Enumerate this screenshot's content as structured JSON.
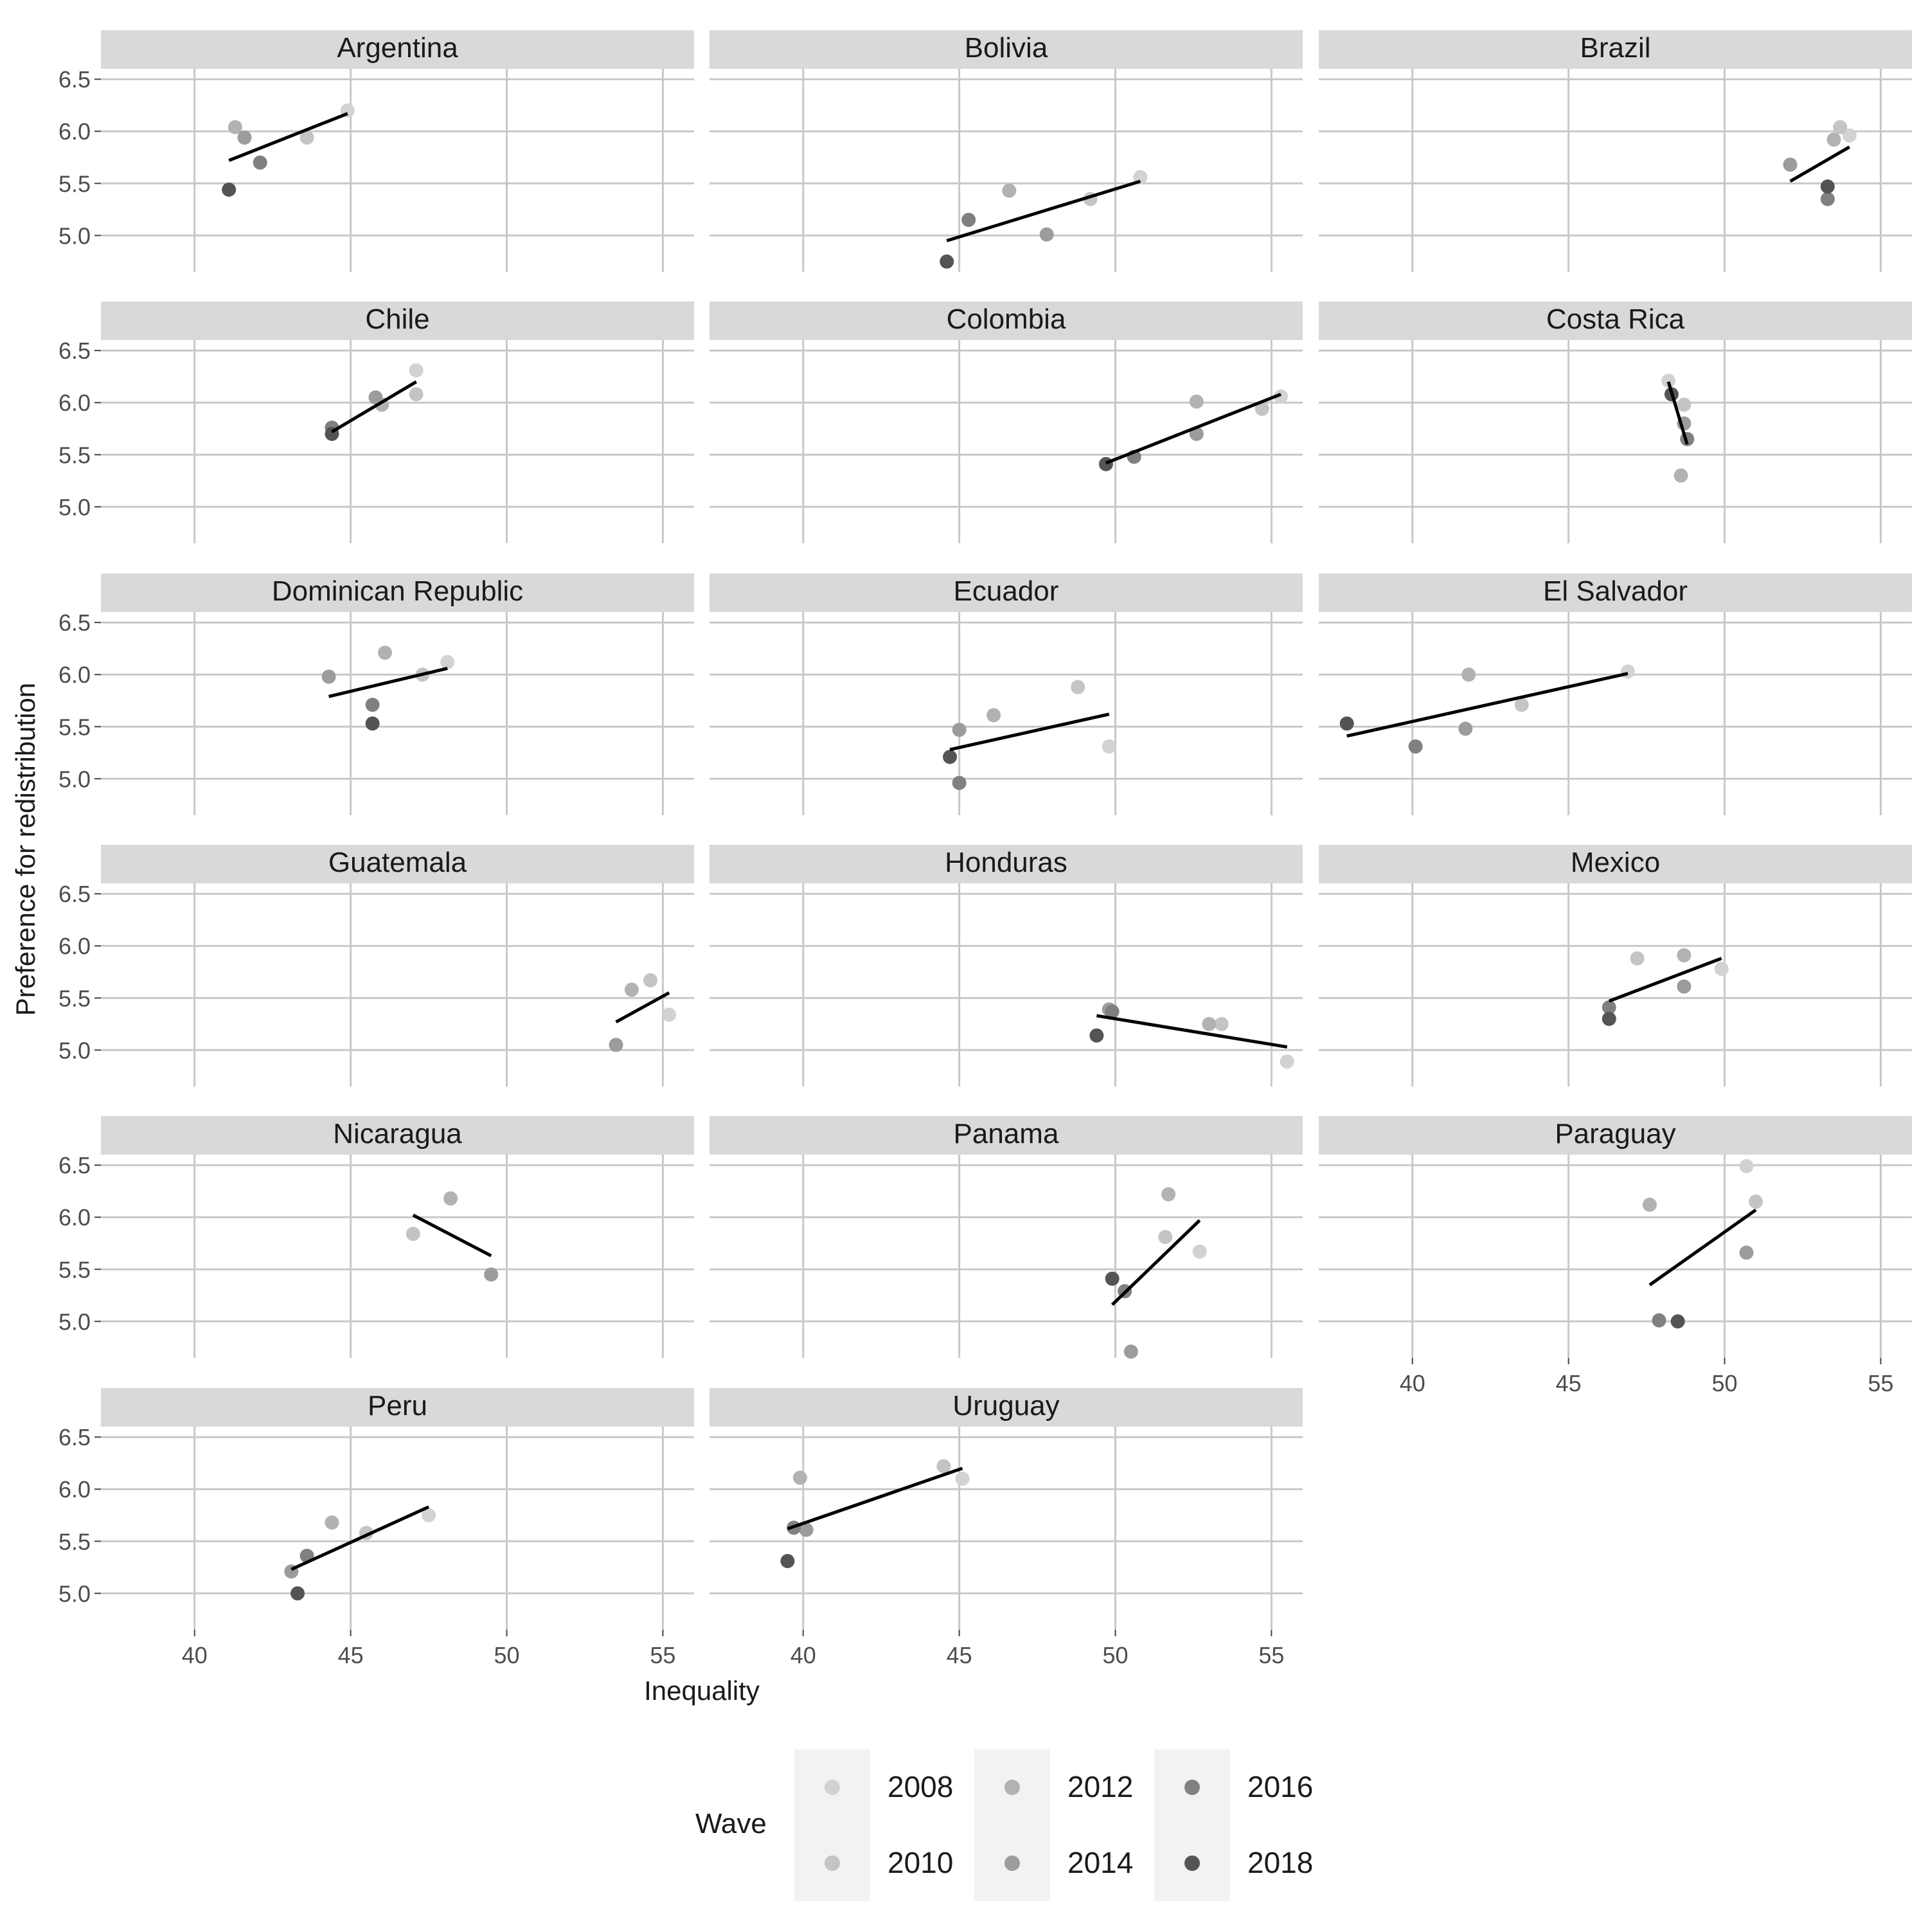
{
  "chart_data": {
    "type": "scatter",
    "layout": "faceted small multiples with per-panel linear fit line",
    "xlabel": "Inequality",
    "ylabel": "Preference for redistribution",
    "xlim": [
      37,
      56
    ],
    "ylim": [
      4.65,
      6.6
    ],
    "x_ticks": [
      40,
      45,
      50,
      55
    ],
    "y_ticks": [
      5.0,
      5.5,
      6.0,
      6.5
    ],
    "x_tick_labels": [
      "40",
      "45",
      "50",
      "55"
    ],
    "y_tick_labels": [
      "5.0",
      "5.5",
      "6.0",
      "6.5"
    ],
    "grid": true,
    "legend": {
      "title": "Wave",
      "position": "bottom",
      "entries": [
        {
          "label": "2008",
          "color": "#d2d2d2"
        },
        {
          "label": "2010",
          "color": "#c4c4c4"
        },
        {
          "label": "2012",
          "color": "#b2b2b2"
        },
        {
          "label": "2014",
          "color": "#9c9c9c"
        },
        {
          "label": "2016",
          "color": "#808080"
        },
        {
          "label": "2018",
          "color": "#545454"
        }
      ]
    },
    "wave_colors": {
      "2008": "#d2d2d2",
      "2010": "#c4c4c4",
      "2012": "#b2b2b2",
      "2014": "#9c9c9c",
      "2016": "#808080",
      "2018": "#545454"
    },
    "facets": [
      {
        "country": "Argentina",
        "points": [
          {
            "wave": "2008",
            "x": 44.9,
            "y": 6.2
          },
          {
            "wave": "2010",
            "x": 43.6,
            "y": 5.94
          },
          {
            "wave": "2012",
            "x": 41.3,
            "y": 6.04
          },
          {
            "wave": "2014",
            "x": 41.6,
            "y": 5.94
          },
          {
            "wave": "2016",
            "x": 42.1,
            "y": 5.7
          },
          {
            "wave": "2018",
            "x": 41.1,
            "y": 5.44
          }
        ],
        "fit": {
          "x": [
            41.1,
            44.9
          ],
          "y": [
            5.72,
            6.17
          ]
        }
      },
      {
        "country": "Bolivia",
        "points": [
          {
            "wave": "2008",
            "x": 50.8,
            "y": 5.56
          },
          {
            "wave": "2010",
            "x": 49.2,
            "y": 5.35
          },
          {
            "wave": "2012",
            "x": 46.6,
            "y": 5.43
          },
          {
            "wave": "2014",
            "x": 47.8,
            "y": 5.01
          },
          {
            "wave": "2016",
            "x": 45.3,
            "y": 5.15
          },
          {
            "wave": "2018",
            "x": 44.6,
            "y": 4.75
          }
        ],
        "fit": {
          "x": [
            44.6,
            50.8
          ],
          "y": [
            4.95,
            5.52
          ]
        }
      },
      {
        "country": "Brazil",
        "points": [
          {
            "wave": "2008",
            "x": 54.0,
            "y": 5.96
          },
          {
            "wave": "2010",
            "x": 53.7,
            "y": 6.04
          },
          {
            "wave": "2012",
            "x": 53.5,
            "y": 5.92
          },
          {
            "wave": "2014",
            "x": 52.1,
            "y": 5.68
          },
          {
            "wave": "2016",
            "x": 53.3,
            "y": 5.35
          },
          {
            "wave": "2018",
            "x": 53.3,
            "y": 5.47
          }
        ],
        "fit": {
          "x": [
            52.1,
            54.0
          ],
          "y": [
            5.52,
            5.85
          ]
        }
      },
      {
        "country": "Chile",
        "points": [
          {
            "wave": "2008",
            "x": 47.1,
            "y": 6.31
          },
          {
            "wave": "2010",
            "x": 47.1,
            "y": 6.08
          },
          {
            "wave": "2012",
            "x": 46.0,
            "y": 5.98
          },
          {
            "wave": "2014",
            "x": 45.8,
            "y": 6.05
          },
          {
            "wave": "2016",
            "x": 44.4,
            "y": 5.76
          },
          {
            "wave": "2018",
            "x": 44.4,
            "y": 5.7
          }
        ],
        "fit": {
          "x": [
            44.4,
            47.1
          ],
          "y": [
            5.72,
            6.2
          ]
        }
      },
      {
        "country": "Colombia",
        "points": [
          {
            "wave": "2008",
            "x": 55.3,
            "y": 6.06
          },
          {
            "wave": "2010",
            "x": 54.7,
            "y": 5.94
          },
          {
            "wave": "2012",
            "x": 52.6,
            "y": 6.01
          },
          {
            "wave": "2014",
            "x": 52.6,
            "y": 5.7
          },
          {
            "wave": "2016",
            "x": 50.6,
            "y": 5.48
          },
          {
            "wave": "2018",
            "x": 49.7,
            "y": 5.41
          }
        ],
        "fit": {
          "x": [
            49.7,
            55.3
          ],
          "y": [
            5.42,
            6.08
          ]
        }
      },
      {
        "country": "Costa Rica",
        "points": [
          {
            "wave": "2008",
            "x": 48.2,
            "y": 6.21
          },
          {
            "wave": "2010",
            "x": 48.7,
            "y": 5.98
          },
          {
            "wave": "2012",
            "x": 48.6,
            "y": 5.3
          },
          {
            "wave": "2014",
            "x": 48.7,
            "y": 5.8
          },
          {
            "wave": "2016",
            "x": 48.8,
            "y": 5.65
          },
          {
            "wave": "2018",
            "x": 48.3,
            "y": 6.08
          }
        ],
        "fit": {
          "x": [
            48.2,
            48.8
          ],
          "y": [
            6.2,
            5.6
          ]
        }
      },
      {
        "country": "Dominican Republic",
        "points": [
          {
            "wave": "2008",
            "x": 48.1,
            "y": 6.12
          },
          {
            "wave": "2010",
            "x": 47.3,
            "y": 6.0
          },
          {
            "wave": "2012",
            "x": 46.1,
            "y": 6.21
          },
          {
            "wave": "2014",
            "x": 44.3,
            "y": 5.98
          },
          {
            "wave": "2016",
            "x": 45.7,
            "y": 5.71
          },
          {
            "wave": "2018",
            "x": 45.7,
            "y": 5.53
          }
        ],
        "fit": {
          "x": [
            44.3,
            48.1
          ],
          "y": [
            5.79,
            6.06
          ]
        }
      },
      {
        "country": "Ecuador",
        "points": [
          {
            "wave": "2008",
            "x": 49.8,
            "y": 5.31
          },
          {
            "wave": "2010",
            "x": 48.8,
            "y": 5.88
          },
          {
            "wave": "2012",
            "x": 46.1,
            "y": 5.61
          },
          {
            "wave": "2014",
            "x": 45.0,
            "y": 5.47
          },
          {
            "wave": "2016",
            "x": 45.0,
            "y": 4.96
          },
          {
            "wave": "2018",
            "x": 44.7,
            "y": 5.21
          }
        ],
        "fit": {
          "x": [
            44.7,
            49.8
          ],
          "y": [
            5.28,
            5.62
          ]
        }
      },
      {
        "country": "El Salvador",
        "points": [
          {
            "wave": "2008",
            "x": 46.9,
            "y": 6.03
          },
          {
            "wave": "2010",
            "x": 43.5,
            "y": 5.71
          },
          {
            "wave": "2012",
            "x": 41.8,
            "y": 6.0
          },
          {
            "wave": "2014",
            "x": 41.7,
            "y": 5.48
          },
          {
            "wave": "2016",
            "x": 40.1,
            "y": 5.31
          },
          {
            "wave": "2018",
            "x": 37.9,
            "y": 5.53
          }
        ],
        "fit": {
          "x": [
            37.9,
            46.9
          ],
          "y": [
            5.41,
            6.01
          ]
        }
      },
      {
        "country": "Guatemala",
        "points": [
          {
            "wave": "2008",
            "x": 55.2,
            "y": 5.34
          },
          {
            "wave": "2010",
            "x": 54.6,
            "y": 5.67
          },
          {
            "wave": "2012",
            "x": 54.0,
            "y": 5.58
          },
          {
            "wave": "2014",
            "x": 53.5,
            "y": 5.05
          }
        ],
        "fit": {
          "x": [
            53.5,
            55.2
          ],
          "y": [
            5.27,
            5.55
          ]
        }
      },
      {
        "country": "Honduras",
        "points": [
          {
            "wave": "2008",
            "x": 55.5,
            "y": 4.89
          },
          {
            "wave": "2010",
            "x": 53.4,
            "y": 5.25
          },
          {
            "wave": "2012",
            "x": 53.0,
            "y": 5.25
          },
          {
            "wave": "2014",
            "x": 49.8,
            "y": 5.39
          },
          {
            "wave": "2016",
            "x": 49.9,
            "y": 5.37
          },
          {
            "wave": "2018",
            "x": 49.4,
            "y": 5.14
          }
        ],
        "fit": {
          "x": [
            49.4,
            55.5
          ],
          "y": [
            5.33,
            5.03
          ]
        }
      },
      {
        "country": "Mexico",
        "points": [
          {
            "wave": "2008",
            "x": 49.9,
            "y": 5.78
          },
          {
            "wave": "2010",
            "x": 47.2,
            "y": 5.88
          },
          {
            "wave": "2012",
            "x": 48.7,
            "y": 5.91
          },
          {
            "wave": "2014",
            "x": 48.7,
            "y": 5.61
          },
          {
            "wave": "2016",
            "x": 46.3,
            "y": 5.41
          },
          {
            "wave": "2018",
            "x": 46.3,
            "y": 5.3
          }
        ],
        "fit": {
          "x": [
            46.3,
            49.9
          ],
          "y": [
            5.47,
            5.88
          ]
        }
      },
      {
        "country": "Nicaragua",
        "points": [
          {
            "wave": "2010",
            "x": 47.0,
            "y": 5.84
          },
          {
            "wave": "2012",
            "x": 48.2,
            "y": 6.18
          },
          {
            "wave": "2014",
            "x": 49.5,
            "y": 5.45
          }
        ],
        "fit": {
          "x": [
            47.0,
            49.5
          ],
          "y": [
            6.02,
            5.63
          ]
        }
      },
      {
        "country": "Panama",
        "points": [
          {
            "wave": "2008",
            "x": 52.7,
            "y": 5.67
          },
          {
            "wave": "2010",
            "x": 51.6,
            "y": 5.81
          },
          {
            "wave": "2012",
            "x": 51.7,
            "y": 6.22
          },
          {
            "wave": "2014",
            "x": 50.5,
            "y": 4.71
          },
          {
            "wave": "2016",
            "x": 50.3,
            "y": 5.29
          },
          {
            "wave": "2018",
            "x": 49.9,
            "y": 5.41
          }
        ],
        "fit": {
          "x": [
            49.9,
            52.7
          ],
          "y": [
            5.16,
            5.97
          ]
        }
      },
      {
        "country": "Paraguay",
        "points": [
          {
            "wave": "2008",
            "x": 50.7,
            "y": 6.49
          },
          {
            "wave": "2010",
            "x": 51.0,
            "y": 6.15
          },
          {
            "wave": "2012",
            "x": 47.6,
            "y": 6.12
          },
          {
            "wave": "2014",
            "x": 50.7,
            "y": 5.66
          },
          {
            "wave": "2016",
            "x": 47.9,
            "y": 5.01
          },
          {
            "wave": "2018",
            "x": 48.5,
            "y": 5.0
          }
        ],
        "fit": {
          "x": [
            47.6,
            51.0
          ],
          "y": [
            5.35,
            6.07
          ]
        }
      },
      {
        "country": "Peru",
        "points": [
          {
            "wave": "2008",
            "x": 47.5,
            "y": 5.75
          },
          {
            "wave": "2010",
            "x": 45.5,
            "y": 5.58
          },
          {
            "wave": "2012",
            "x": 44.4,
            "y": 5.68
          },
          {
            "wave": "2014",
            "x": 43.1,
            "y": 5.21
          },
          {
            "wave": "2016",
            "x": 43.6,
            "y": 5.36
          },
          {
            "wave": "2018",
            "x": 43.3,
            "y": 5.0
          }
        ],
        "fit": {
          "x": [
            43.1,
            47.5
          ],
          "y": [
            5.23,
            5.83
          ]
        }
      },
      {
        "country": "Uruguay",
        "points": [
          {
            "wave": "2008",
            "x": 45.1,
            "y": 6.1
          },
          {
            "wave": "2010",
            "x": 44.5,
            "y": 6.22
          },
          {
            "wave": "2012",
            "x": 39.9,
            "y": 6.11
          },
          {
            "wave": "2014",
            "x": 40.1,
            "y": 5.61
          },
          {
            "wave": "2016",
            "x": 39.7,
            "y": 5.63
          },
          {
            "wave": "2018",
            "x": 39.5,
            "y": 5.31
          }
        ],
        "fit": {
          "x": [
            39.5,
            45.1
          ],
          "y": [
            5.62,
            6.2
          ]
        }
      }
    ]
  }
}
